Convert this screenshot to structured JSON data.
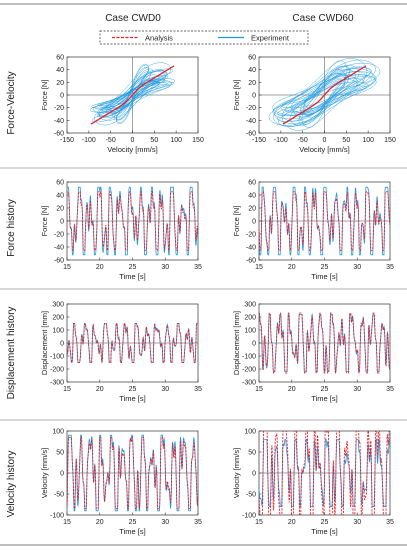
{
  "columns": [
    "Case CWD0",
    "Case CWD60"
  ],
  "rows": [
    "Force-Velocity",
    "Force history",
    "Displacement history",
    "Velocity history"
  ],
  "legend": {
    "analysis": "Analysis",
    "experiment": "Experiment",
    "placement": "top-center"
  },
  "colors": {
    "analysis": "#e8202a",
    "experiment": "#1f9be0",
    "frame": "#333333"
  },
  "chart_data": [
    {
      "type": "scatter",
      "row": "Force-Velocity",
      "column": "Case CWD0",
      "xlabel": "Velocity [mm/s]",
      "ylabel": "Force [N]",
      "xlim": [
        -150,
        150
      ],
      "ylim": [
        -60,
        60
      ],
      "xticks": [
        -150,
        -100,
        -50,
        0,
        50,
        100,
        150
      ],
      "yticks": [
        -60,
        -40,
        -20,
        0,
        20,
        40,
        60
      ],
      "series": [
        {
          "name": "Analysis",
          "kind": "line",
          "slope": 0.42,
          "x_range": [
            -95,
            95
          ]
        },
        {
          "name": "Experiment",
          "kind": "hysteresis",
          "x_range": [
            -100,
            100
          ],
          "y_range": [
            -55,
            50
          ]
        }
      ]
    },
    {
      "type": "scatter",
      "row": "Force-Velocity",
      "column": "Case CWD60",
      "xlabel": "Velocity [mm/s]",
      "ylabel": "Force [N]",
      "xlim": [
        -150,
        150
      ],
      "ylim": [
        -60,
        60
      ],
      "xticks": [
        -150,
        -100,
        -50,
        0,
        50,
        100,
        150
      ],
      "yticks": [
        -60,
        -40,
        -20,
        0,
        20,
        40,
        60
      ],
      "series": [
        {
          "name": "Analysis",
          "kind": "line",
          "slope": 0.42,
          "x_range": [
            -95,
            95
          ]
        },
        {
          "name": "Experiment",
          "kind": "hysteresis",
          "x_range": [
            -130,
            130
          ],
          "y_range": [
            -50,
            50
          ]
        }
      ]
    },
    {
      "type": "line",
      "row": "Force history",
      "column": "Case CWD0",
      "xlabel": "Time [s]",
      "ylabel": "Force [N]",
      "xlim": [
        15,
        35
      ],
      "ylim": [
        -60,
        60
      ],
      "xticks": [
        15,
        20,
        25,
        30,
        35
      ],
      "yticks": [
        -60,
        -40,
        -20,
        0,
        20,
        40,
        60
      ],
      "series": [
        {
          "name": "Analysis",
          "amplitude": 45
        },
        {
          "name": "Experiment",
          "amplitude": 52
        }
      ]
    },
    {
      "type": "line",
      "row": "Force history",
      "column": "Case CWD60",
      "xlabel": "Time [s]",
      "ylabel": "Force [N]",
      "xlim": [
        15,
        35
      ],
      "ylim": [
        -60,
        60
      ],
      "xticks": [
        15,
        20,
        25,
        30,
        35
      ],
      "yticks": [
        -60,
        -40,
        -20,
        0,
        20,
        40,
        60
      ],
      "series": [
        {
          "name": "Analysis",
          "amplitude": 45
        },
        {
          "name": "Experiment",
          "amplitude": 52
        }
      ]
    },
    {
      "type": "line",
      "row": "Displacement history",
      "column": "Case CWD0",
      "xlabel": "Time [s]",
      "ylabel": "Displacement [mm]",
      "xlim": [
        15,
        35
      ],
      "ylim": [
        -300,
        300
      ],
      "xticks": [
        15,
        20,
        25,
        30,
        35
      ],
      "yticks": [
        -300,
        -200,
        -100,
        0,
        100,
        200,
        300
      ],
      "series": [
        {
          "name": "Analysis",
          "amplitude": 150
        },
        {
          "name": "Experiment",
          "amplitude": 150
        }
      ]
    },
    {
      "type": "line",
      "row": "Displacement history",
      "column": "Case CWD60",
      "xlabel": "Time [s]",
      "ylabel": "Displacement [mm]",
      "xlim": [
        15,
        35
      ],
      "ylim": [
        -300,
        300
      ],
      "xticks": [
        15,
        20,
        25,
        30,
        35
      ],
      "yticks": [
        -300,
        -200,
        -100,
        0,
        100,
        200,
        300
      ],
      "series": [
        {
          "name": "Analysis",
          "amplitude": 230
        },
        {
          "name": "Experiment",
          "amplitude": 220
        }
      ]
    },
    {
      "type": "line",
      "row": "Velocity history",
      "column": "Case CWD0",
      "xlabel": "Time [s]",
      "ylabel": "Velocity [mm/s]",
      "xlim": [
        15,
        35
      ],
      "ylim": [
        -100,
        100
      ],
      "xticks": [
        15,
        20,
        25,
        30,
        35
      ],
      "yticks": [
        -100,
        -50,
        0,
        50,
        100
      ],
      "series": [
        {
          "name": "Analysis",
          "amplitude": 85
        },
        {
          "name": "Experiment",
          "amplitude": 90
        }
      ]
    },
    {
      "type": "line",
      "row": "Velocity history",
      "column": "Case CWD60",
      "xlabel": "Time [s]",
      "ylabel": "Velocity [mm/s]",
      "xlim": [
        15,
        35
      ],
      "ylim": [
        -100,
        100
      ],
      "xticks": [
        15,
        20,
        25,
        30,
        35
      ],
      "yticks": [
        -100,
        -50,
        0,
        50,
        100
      ],
      "series": [
        {
          "name": "Analysis",
          "amplitude": 130
        },
        {
          "name": "Experiment",
          "amplitude": 80
        }
      ]
    }
  ]
}
